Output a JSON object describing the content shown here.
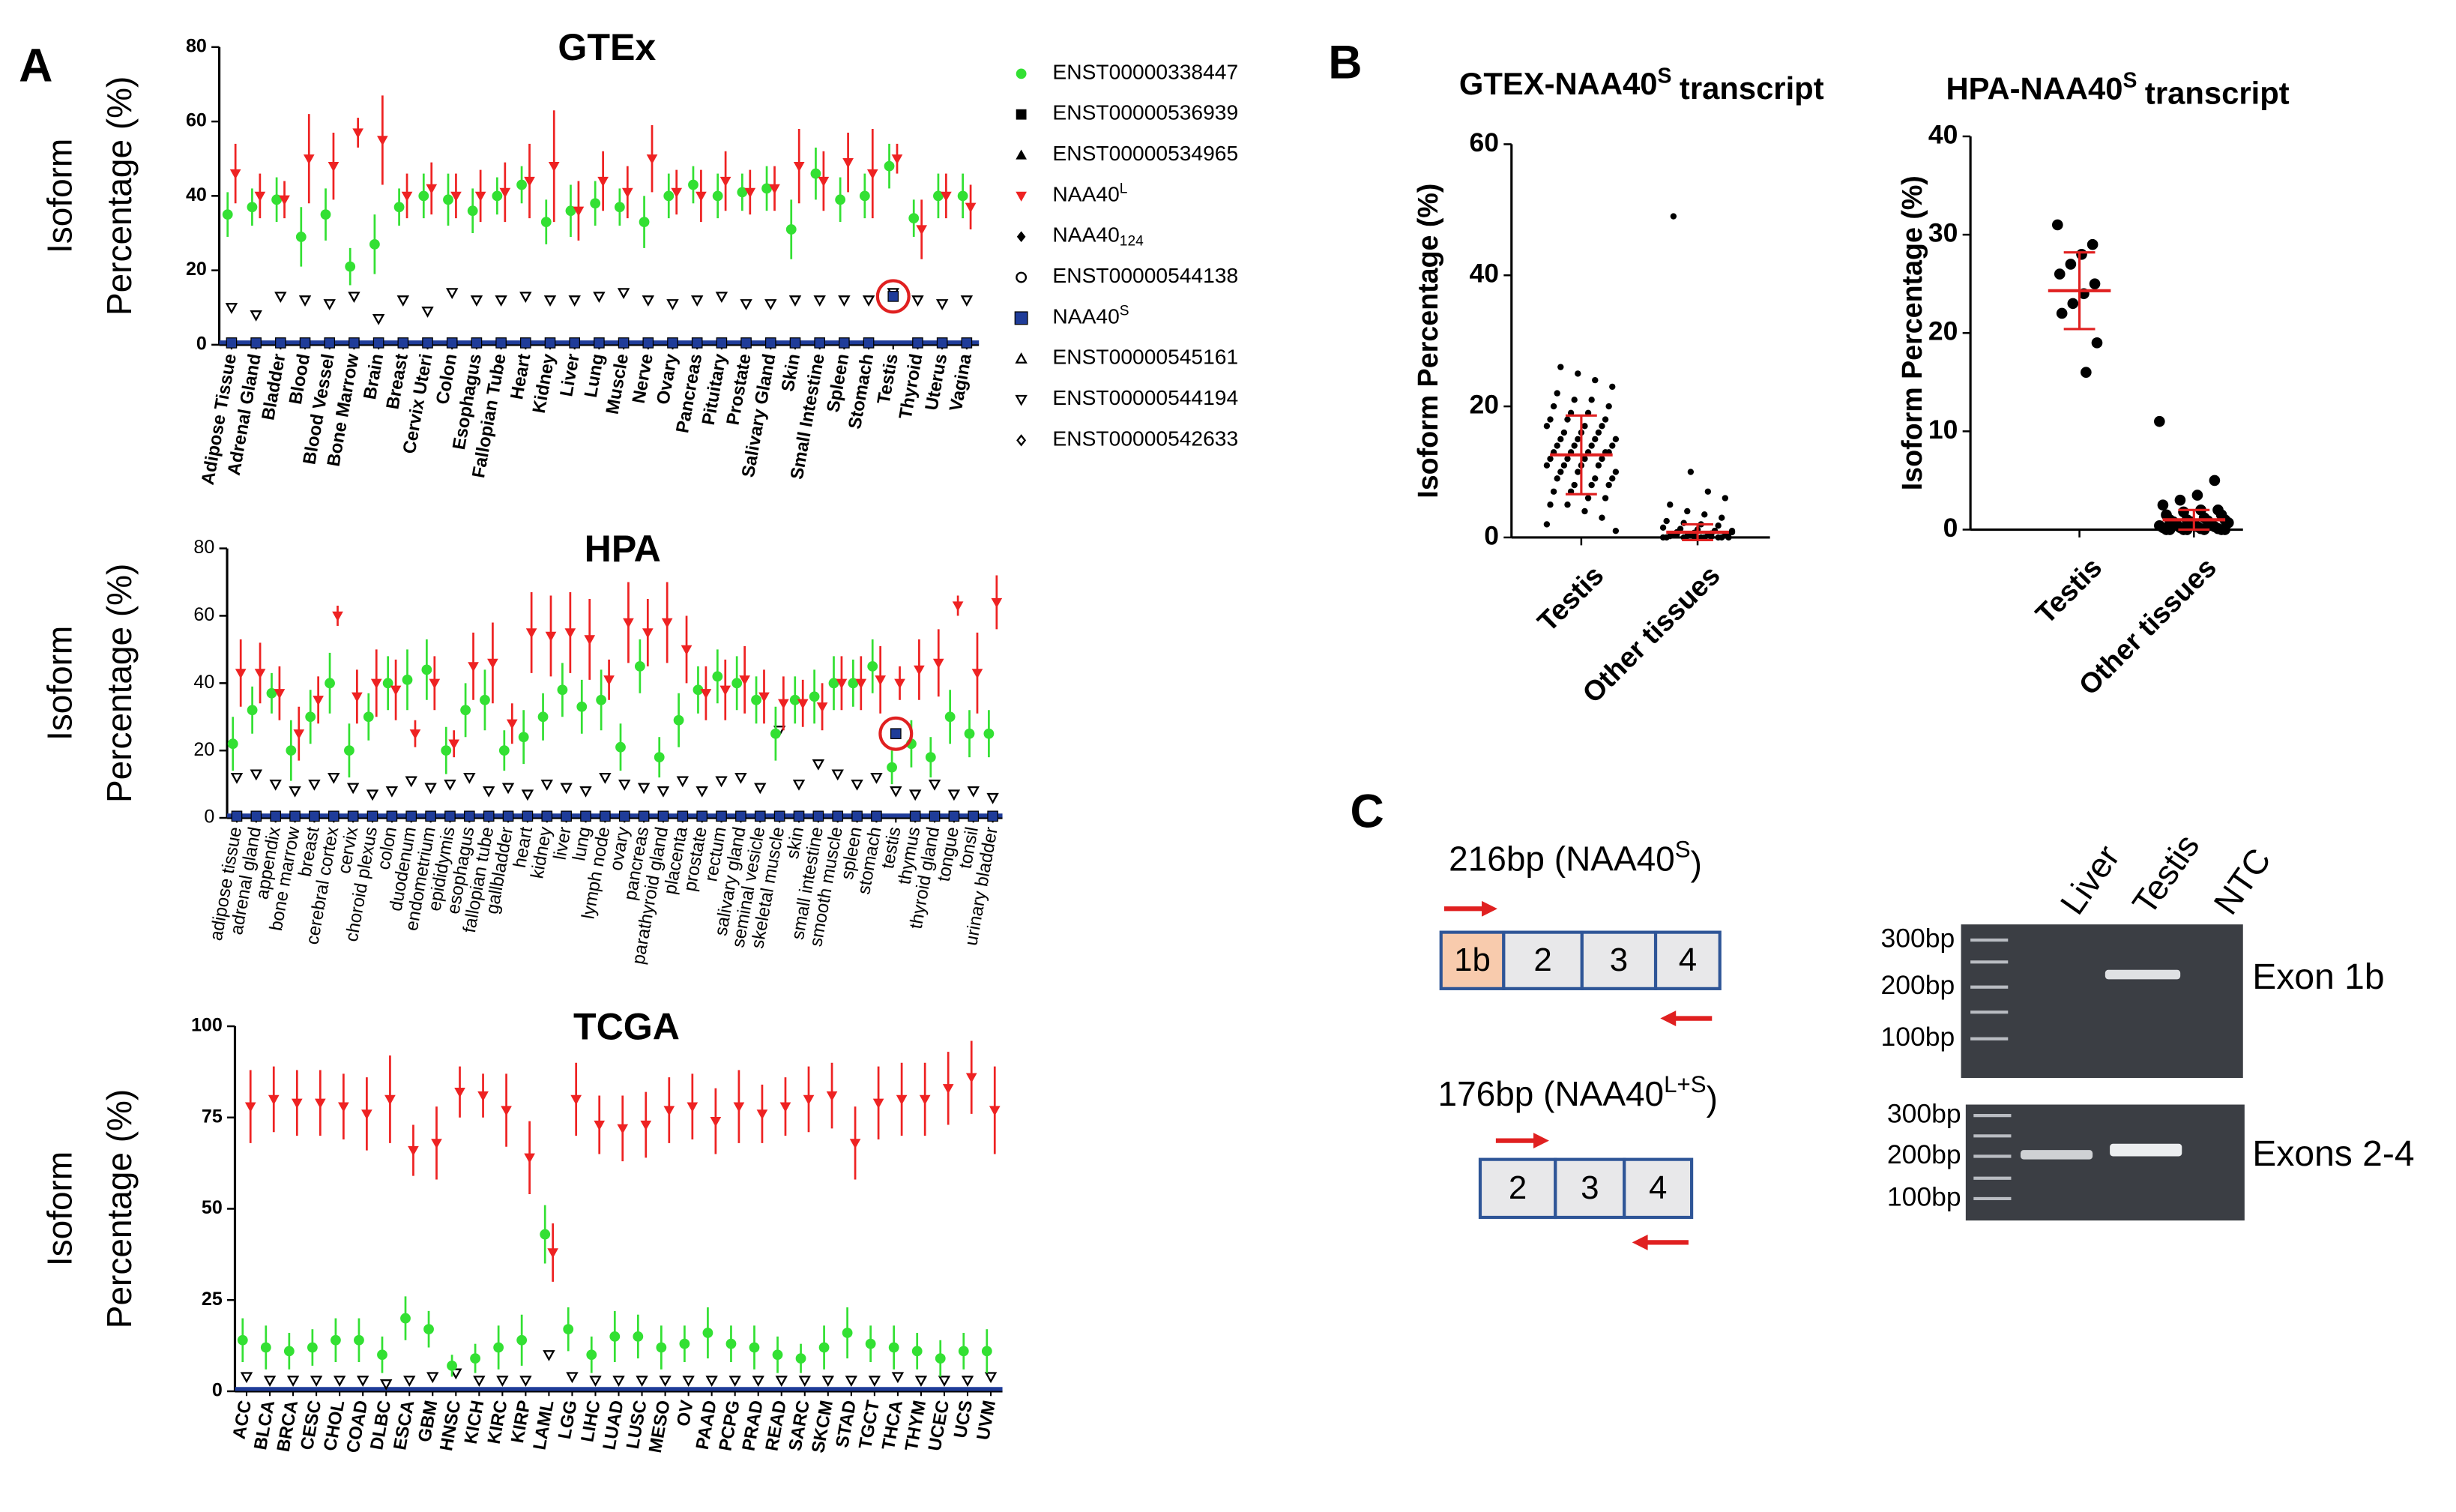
{
  "panel_labels": [
    "A",
    "B",
    "C"
  ],
  "chart_data": [
    {
      "type": "dotplot",
      "title": "GTEx",
      "ylabel": [
        "Isoform",
        "Percentage (%)"
      ],
      "categories": [
        "Adipose Tissue",
        "Adrenal Gland",
        "Bladder",
        "Blood",
        "Blood Vessel",
        "Bone Marrow",
        "Brain",
        "Breast",
        "Cervix Uteri",
        "Colon",
        "Esophagus",
        "Fallopian Tube",
        "Heart",
        "Kidney",
        "Liver",
        "Lung",
        "Muscle",
        "Nerve",
        "Ovary",
        "Pancreas",
        "Pituitary",
        "Prostate",
        "Salivary Gland",
        "Skin",
        "Small Intestine",
        "Spleen",
        "Stomach",
        "Testis",
        "Thyroid",
        "Uterus",
        "Vagina"
      ],
      "ylim": [
        0,
        80
      ],
      "yticks": [
        0,
        20,
        40,
        60,
        80
      ],
      "series": [
        {
          "name": "ENST00000544194",
          "marker": "triangle-down-open",
          "color": "#000000",
          "values": [
            10,
            8,
            13,
            12,
            11,
            13,
            7,
            12,
            9,
            14,
            12,
            12,
            13,
            12,
            12,
            13,
            14,
            12,
            11,
            12,
            13,
            11,
            11,
            12,
            12,
            12,
            12,
            14,
            12,
            11,
            12
          ]
        },
        {
          "name": "ENST00000338447",
          "marker": "circle",
          "color": "#33e033",
          "values": [
            35,
            37,
            39,
            29,
            35,
            21,
            27,
            37,
            40,
            39,
            36,
            40,
            43,
            33,
            36,
            38,
            37,
            33,
            40,
            43,
            40,
            41,
            42,
            31,
            46,
            39,
            40,
            48,
            34,
            40,
            40
          ],
          "errors": [
            6,
            5,
            6,
            8,
            7,
            5,
            8,
            5,
            6,
            7,
            6,
            5,
            5,
            6,
            7,
            6,
            5,
            7,
            6,
            5,
            6,
            5,
            6,
            8,
            7,
            6,
            6,
            6,
            5,
            6,
            6
          ]
        },
        {
          "name": "NAA40",
          "name_sup": "L",
          "marker": "triangle-down",
          "color": "#ee2222",
          "values": [
            46,
            40,
            39,
            50,
            48,
            57,
            55,
            40,
            42,
            40,
            40,
            41,
            44,
            48,
            36,
            44,
            41,
            50,
            41,
            40,
            44,
            41,
            42,
            48,
            44,
            49,
            46,
            50,
            31,
            40,
            37
          ],
          "errors": [
            8,
            6,
            5,
            12,
            9,
            4,
            12,
            6,
            7,
            6,
            7,
            8,
            10,
            15,
            8,
            8,
            7,
            9,
            6,
            7,
            8,
            6,
            6,
            10,
            8,
            8,
            12,
            4,
            8,
            6,
            6
          ]
        },
        {
          "name": "NAA40",
          "name_sup": "S",
          "marker": "square",
          "color": "#1f3c99",
          "values": [
            0.5,
            0.5,
            0.5,
            0.5,
            0.5,
            0.5,
            0.5,
            0.5,
            0.5,
            0.5,
            0.5,
            0.5,
            0.5,
            0.5,
            0.5,
            0.5,
            0.5,
            0.5,
            0.5,
            0.5,
            0.5,
            0.5,
            0.5,
            0.5,
            0.5,
            0.5,
            0.5,
            13,
            0.5,
            0.5,
            0.5
          ]
        }
      ],
      "highlight": "Testis",
      "legend": [
        {
          "name": "ENST00000338447",
          "marker": "circle",
          "color": "#33e033"
        },
        {
          "name": "ENST00000536939",
          "marker": "square",
          "color": "#000000"
        },
        {
          "name": "ENST00000534965",
          "marker": "triangle-up",
          "color": "#000000"
        },
        {
          "name": "NAA40",
          "name_sup": "L",
          "marker": "triangle-down",
          "color": "#ee2222"
        },
        {
          "name": "NAA40",
          "name_sub": "124",
          "marker": "diamond",
          "color": "#000000"
        },
        {
          "name": "ENST00000544138",
          "marker": "circle-open",
          "color": "#000000"
        },
        {
          "name": "NAA40",
          "name_sup": "S",
          "marker": "square",
          "color": "#1f3c99"
        },
        {
          "name": "ENST00000545161",
          "marker": "triangle-up-open",
          "color": "#000000"
        },
        {
          "name": "ENST00000544194",
          "marker": "triangle-down-open",
          "color": "#000000"
        },
        {
          "name": "ENST00000542633",
          "marker": "diamond-open",
          "color": "#000000"
        }
      ]
    },
    {
      "type": "dotplot",
      "title": "HPA",
      "ylabel": [
        "Isoform",
        "Percentage (%)"
      ],
      "categories": [
        "adipose tissue",
        "adrenal gland",
        "appendix",
        "bone marrow",
        "breast",
        "cerebral cortex",
        "cervix",
        "choroid plexus",
        "colon",
        "duodenum",
        "endometrium",
        "epididymis",
        "esophagus",
        "fallopian tube",
        "gallbladder",
        "heart",
        "kidney",
        "liver",
        "lung",
        "lymph node",
        "ovary",
        "pancreas",
        "parathyroid gland",
        "placenta",
        "prostate",
        "rectum",
        "salivary gland",
        "seminal vesicle",
        "skeletal muscle",
        "skin",
        "small intestine",
        "smooth muscle",
        "spleen",
        "stomach",
        "testis",
        "thymus",
        "thyroid gland",
        "tongue",
        "tonsil",
        "urinary bladder"
      ],
      "ylim": [
        0,
        80
      ],
      "yticks": [
        0,
        20,
        40,
        60,
        80
      ],
      "series": [
        {
          "name": "ENST00000544194",
          "marker": "triangle-down-open",
          "color": "#000000",
          "values": [
            12,
            13,
            10,
            8,
            10,
            12,
            9,
            7,
            8,
            11,
            9,
            10,
            12,
            8,
            9,
            7,
            10,
            9,
            8,
            12,
            10,
            9,
            8,
            11,
            8,
            11,
            12,
            9,
            26,
            10,
            16,
            13,
            10,
            12,
            8,
            7,
            10,
            7,
            8,
            6
          ]
        },
        {
          "name": "ENST00000338447",
          "marker": "circle",
          "color": "#33e033",
          "values": [
            22,
            32,
            37,
            20,
            30,
            40,
            20,
            30,
            40,
            41,
            44,
            20,
            32,
            35,
            20,
            24,
            30,
            38,
            33,
            35,
            21,
            45,
            18,
            29,
            38,
            42,
            40,
            35,
            25,
            35,
            36,
            40,
            40,
            45,
            15,
            22,
            18,
            30,
            25,
            25
          ],
          "errors": [
            8,
            7,
            6,
            9,
            8,
            9,
            8,
            7,
            8,
            9,
            9,
            7,
            8,
            9,
            6,
            8,
            7,
            8,
            8,
            9,
            7,
            8,
            6,
            8,
            7,
            8,
            8,
            7,
            8,
            7,
            8,
            8,
            7,
            8,
            5,
            7,
            6,
            8,
            7,
            7
          ]
        },
        {
          "name": "NAA40",
          "name_sup": "L",
          "marker": "triangle-down",
          "color": "#ee2222",
          "values": [
            43,
            43,
            37,
            25,
            35,
            60,
            36,
            40,
            38,
            25,
            40,
            22,
            45,
            46,
            28,
            55,
            54,
            55,
            53,
            41,
            58,
            55,
            58,
            50,
            37,
            38,
            41,
            36,
            34,
            34,
            33,
            40,
            40,
            41,
            40,
            44,
            46,
            63,
            43,
            64
          ],
          "errors": [
            10,
            9,
            8,
            8,
            7,
            3,
            8,
            10,
            9,
            4,
            8,
            4,
            10,
            12,
            6,
            12,
            12,
            12,
            12,
            6,
            12,
            10,
            12,
            10,
            8,
            9,
            10,
            8,
            8,
            7,
            7,
            8,
            8,
            10,
            5,
            9,
            10,
            3,
            12,
            8
          ]
        },
        {
          "name": "NAA40",
          "name_sup": "S",
          "marker": "square",
          "color": "#1f3c99",
          "values": [
            0.5,
            0.5,
            0.5,
            0.5,
            0.5,
            0.5,
            0.5,
            0.5,
            0.5,
            0.5,
            0.5,
            0.5,
            0.5,
            0.5,
            0.5,
            0.5,
            0.5,
            0.5,
            0.5,
            0.5,
            0.5,
            0.5,
            0.5,
            0.5,
            0.5,
            0.5,
            0.5,
            0.5,
            0.5,
            0.5,
            0.5,
            0.5,
            0.5,
            0.5,
            25,
            0.5,
            0.5,
            0.5,
            0.5,
            0.5
          ]
        }
      ],
      "highlight": "testis"
    },
    {
      "type": "dotplot",
      "title": "TCGA",
      "ylabel": [
        "Isoform",
        "Percentage (%)"
      ],
      "categories": [
        "ACC",
        "BLCA",
        "BRCA",
        "CESC",
        "CHOL",
        "COAD",
        "DLBC",
        "ESCA",
        "GBM",
        "HNSC",
        "KICH",
        "KIRC",
        "KIRP",
        "LAML",
        "LGG",
        "LIHC",
        "LUAD",
        "LUSC",
        "MESO",
        "OV",
        "PAAD",
        "PCPG",
        "PRAD",
        "READ",
        "SARC",
        "SKCM",
        "STAD",
        "TGCT",
        "THCA",
        "THYM",
        "UCEC",
        "UCS",
        "UVM"
      ],
      "ylim": [
        0,
        100
      ],
      "yticks": [
        0,
        25,
        50,
        75,
        100
      ],
      "series": [
        {
          "name": "ENST00000544194",
          "marker": "triangle-down-open",
          "color": "#000000",
          "values": [
            4,
            3,
            3,
            3,
            3,
            3,
            2,
            3,
            4,
            5,
            3,
            3,
            3,
            10,
            4,
            3,
            3,
            3,
            3,
            3,
            3,
            3,
            3,
            3,
            3,
            3,
            3,
            3,
            4,
            3,
            3,
            3,
            4
          ]
        },
        {
          "name": "ENST00000338447",
          "marker": "circle",
          "color": "#33e033",
          "values": [
            14,
            12,
            11,
            12,
            14,
            14,
            10,
            20,
            17,
            7,
            9,
            12,
            14,
            43,
            17,
            10,
            15,
            15,
            12,
            13,
            16,
            13,
            12,
            10,
            9,
            12,
            16,
            13,
            12,
            11,
            9,
            11,
            11
          ],
          "errors": [
            6,
            6,
            5,
            5,
            6,
            6,
            5,
            6,
            5,
            3,
            4,
            6,
            7,
            8,
            6,
            5,
            7,
            6,
            6,
            5,
            7,
            5,
            6,
            5,
            4,
            6,
            7,
            5,
            6,
            5,
            5,
            5,
            6
          ]
        },
        {
          "name": "NAA40",
          "name_sup": "L",
          "marker": "triangle-down",
          "color": "#ee2222",
          "values": [
            78,
            80,
            79,
            79,
            78,
            76,
            80,
            66,
            68,
            82,
            81,
            77,
            64,
            38,
            80,
            73,
            72,
            73,
            77,
            78,
            74,
            78,
            76,
            78,
            80,
            81,
            68,
            79,
            80,
            80,
            83,
            86,
            77
          ],
          "errors": [
            10,
            9,
            9,
            9,
            9,
            10,
            12,
            7,
            10,
            7,
            6,
            10,
            10,
            8,
            10,
            8,
            9,
            9,
            9,
            9,
            9,
            10,
            8,
            8,
            9,
            9,
            10,
            10,
            10,
            10,
            10,
            10,
            12
          ]
        }
      ]
    },
    {
      "type": "groupdots",
      "title": "GTEX-NAA40",
      "title_sup": "S",
      "title_end": "transcript",
      "ylabel": "Isoform Percentage (%)",
      "ylim": [
        0,
        60
      ],
      "yticks": [
        0,
        20,
        40,
        60
      ],
      "groups": [
        {
          "name": "Testis",
          "mean": 12.6,
          "sd": 6,
          "values": [
            2,
            3,
            4,
            5,
            5,
            6,
            6,
            7,
            7,
            8,
            8,
            8,
            9,
            9,
            9,
            10,
            10,
            10,
            11,
            11,
            11,
            11,
            12,
            12,
            12,
            12,
            13,
            13,
            13,
            13,
            13,
            14,
            14,
            14,
            14,
            15,
            15,
            15,
            15,
            16,
            16,
            16,
            17,
            17,
            17,
            18,
            18,
            18,
            19,
            19,
            20,
            20,
            21,
            21,
            22,
            23,
            24,
            25,
            26,
            1
          ]
        },
        {
          "name": "Other tissues",
          "mean": 0.8,
          "sd": 1.2,
          "values": [
            0,
            0,
            0,
            0,
            0,
            0,
            0,
            0.2,
            0.2,
            0.3,
            0.3,
            0.4,
            0.5,
            0.5,
            0.6,
            0.7,
            0.8,
            1,
            1,
            1.2,
            1.3,
            1.5,
            1.8,
            2,
            2.2,
            2.5,
            3,
            3.5,
            4,
            5,
            6,
            7,
            10,
            49,
            0,
            0.1,
            0.1,
            0.5,
            0.8,
            1
          ]
        }
      ]
    },
    {
      "type": "groupdots",
      "title": "HPA-NAA40",
      "title_sup": "S",
      "title_end": "transcript",
      "ylabel": "Isoform Percentage (%)",
      "ylim": [
        0,
        40
      ],
      "yticks": [
        0,
        10,
        20,
        30,
        40
      ],
      "groups": [
        {
          "name": "Testis",
          "mean": 24.3,
          "sd": 3.9,
          "values": [
            31,
            29,
            28,
            27,
            26,
            25,
            24,
            23,
            22,
            19,
            16
          ]
        },
        {
          "name": "Other tissues",
          "mean": 1,
          "sd": 1,
          "values": [
            11,
            5,
            3.5,
            3,
            2.5,
            2,
            2,
            1.8,
            1.5,
            1.5,
            1.2,
            1,
            1,
            1,
            0.9,
            0.8,
            0.8,
            0.7,
            0.6,
            0.5,
            0.5,
            0.4,
            0.3,
            0.3,
            0.2,
            0.2,
            0.1,
            0.1,
            0,
            0,
            0,
            0,
            0,
            0,
            0
          ]
        }
      ]
    }
  ],
  "diagram": {
    "products": [
      {
        "prefix": "216bp (NAA40",
        "sup": "S",
        "suffix": ")",
        "exons": [
          "1b",
          "2",
          "3",
          "4"
        ]
      },
      {
        "prefix": "176bp (NAA40",
        "sup": "L+S",
        "suffix": ")",
        "exons": [
          "2",
          "3",
          "4"
        ]
      }
    ],
    "gel": {
      "lanes": [
        "Liver",
        "Testis",
        "NTC"
      ],
      "rows": [
        {
          "label": "Exon 1b",
          "ladder": [
            "300bp",
            "200bp",
            "100bp"
          ]
        },
        {
          "label": "Exons 2-4",
          "ladder": [
            "300bp",
            "200bp",
            "100bp"
          ]
        }
      ]
    }
  }
}
